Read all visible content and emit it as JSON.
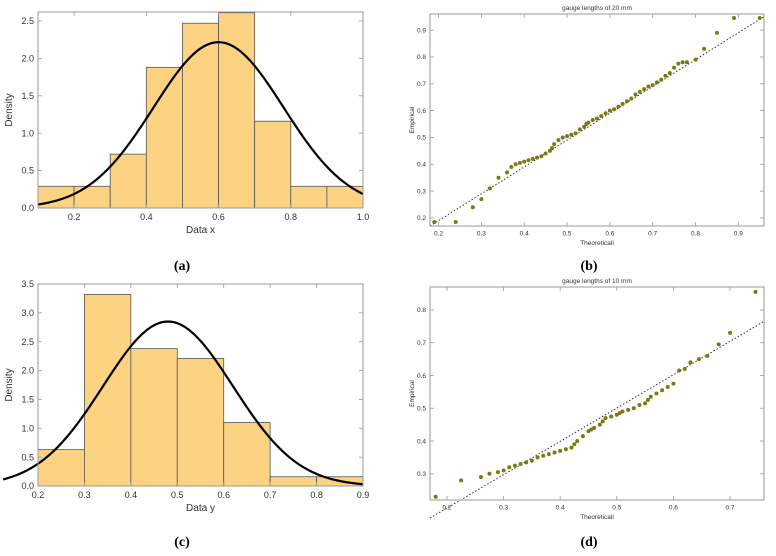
{
  "chart_data": [
    {
      "id": "a",
      "type": "histogram",
      "caption": "(a)",
      "title": "",
      "xlabel": "Data x",
      "ylabel": "Density",
      "xlim": [
        0.1,
        1.0
      ],
      "ylim": [
        0,
        2.62
      ],
      "xticks": [
        "0.2",
        "0.4",
        "0.6",
        "0.8",
        "1.0"
      ],
      "xtick_values": [
        0.2,
        0.4,
        0.6,
        0.8,
        1.0
      ],
      "yticks": [
        "0.0",
        "0.5",
        "1.0",
        "1.5",
        "2.0",
        "2.5"
      ],
      "ytick_values": [
        0,
        0.5,
        1.0,
        1.5,
        2.0,
        2.5
      ],
      "bins": [
        {
          "x0": 0.1,
          "x1": 0.2,
          "value": 0.29
        },
        {
          "x0": 0.2,
          "x1": 0.3,
          "value": 0.29
        },
        {
          "x0": 0.3,
          "x1": 0.4,
          "value": 0.72
        },
        {
          "x0": 0.4,
          "x1": 0.5,
          "value": 1.88
        },
        {
          "x0": 0.5,
          "x1": 0.6,
          "value": 2.47
        },
        {
          "x0": 0.6,
          "x1": 0.7,
          "value": 2.61
        },
        {
          "x0": 0.7,
          "x1": 0.8,
          "value": 1.16
        },
        {
          "x0": 0.8,
          "x1": 0.9,
          "value": 0.29
        },
        {
          "x0": 0.9,
          "x1": 1.0,
          "value": 0.29
        }
      ],
      "curve": {
        "type": "normal",
        "mean": 0.6,
        "sd": 0.18
      }
    },
    {
      "id": "b",
      "type": "scatter",
      "caption": "(b)",
      "title": "gauge lengths of 20 mm",
      "xlabel": "Theoreticall",
      "ylabel": "Empirical",
      "xlim": [
        0.18,
        0.96
      ],
      "ylim": [
        0.17,
        0.96
      ],
      "xticks": [
        "0.2",
        "0.3",
        "0.4",
        "0.5",
        "0.6",
        "0.7",
        "0.8",
        "0.9"
      ],
      "xtick_values": [
        0.2,
        0.3,
        0.4,
        0.5,
        0.6,
        0.7,
        0.8,
        0.9
      ],
      "yticks": [
        "0.2",
        "0.3",
        "0.4",
        "0.5",
        "0.6",
        "0.7",
        "0.8",
        "0.9"
      ],
      "ytick_values": [
        0.2,
        0.3,
        0.4,
        0.5,
        0.6,
        0.7,
        0.8,
        0.9
      ],
      "reference_line": [
        [
          0.18,
          0.17
        ],
        [
          0.96,
          0.95
        ]
      ],
      "points": [
        [
          0.19,
          0.185
        ],
        [
          0.24,
          0.185
        ],
        [
          0.28,
          0.24
        ],
        [
          0.3,
          0.27
        ],
        [
          0.32,
          0.31
        ],
        [
          0.34,
          0.35
        ],
        [
          0.36,
          0.37
        ],
        [
          0.37,
          0.39
        ],
        [
          0.38,
          0.4
        ],
        [
          0.39,
          0.405
        ],
        [
          0.4,
          0.41
        ],
        [
          0.41,
          0.415
        ],
        [
          0.42,
          0.42
        ],
        [
          0.43,
          0.425
        ],
        [
          0.44,
          0.43
        ],
        [
          0.45,
          0.44
        ],
        [
          0.46,
          0.45
        ],
        [
          0.465,
          0.46
        ],
        [
          0.47,
          0.475
        ],
        [
          0.48,
          0.49
        ],
        [
          0.49,
          0.5
        ],
        [
          0.5,
          0.505
        ],
        [
          0.51,
          0.51
        ],
        [
          0.52,
          0.515
        ],
        [
          0.53,
          0.53
        ],
        [
          0.54,
          0.54
        ],
        [
          0.545,
          0.55
        ],
        [
          0.55,
          0.555
        ],
        [
          0.56,
          0.565
        ],
        [
          0.57,
          0.57
        ],
        [
          0.58,
          0.58
        ],
        [
          0.59,
          0.59
        ],
        [
          0.6,
          0.6
        ],
        [
          0.61,
          0.605
        ],
        [
          0.62,
          0.615
        ],
        [
          0.63,
          0.625
        ],
        [
          0.64,
          0.635
        ],
        [
          0.65,
          0.645
        ],
        [
          0.66,
          0.66
        ],
        [
          0.67,
          0.67
        ],
        [
          0.68,
          0.68
        ],
        [
          0.69,
          0.69
        ],
        [
          0.7,
          0.695
        ],
        [
          0.71,
          0.705
        ],
        [
          0.72,
          0.715
        ],
        [
          0.73,
          0.73
        ],
        [
          0.74,
          0.74
        ],
        [
          0.75,
          0.76
        ],
        [
          0.76,
          0.775
        ],
        [
          0.77,
          0.78
        ],
        [
          0.78,
          0.78
        ],
        [
          0.8,
          0.79
        ],
        [
          0.82,
          0.83
        ],
        [
          0.85,
          0.89
        ],
        [
          0.89,
          0.945
        ],
        [
          0.95,
          0.945
        ]
      ]
    },
    {
      "id": "c",
      "type": "histogram",
      "caption": "(c)",
      "title": "",
      "xlabel": "Data y",
      "ylabel": "Density",
      "xlim": [
        0.2,
        0.9
      ],
      "ylim": [
        0,
        3.5
      ],
      "xticks": [
        "0.2",
        "0.3",
        "0.4",
        "0.5",
        "0.6",
        "0.7",
        "0.8",
        "0.9"
      ],
      "xtick_values": [
        0.2,
        0.3,
        0.4,
        0.5,
        0.6,
        0.7,
        0.8,
        0.9
      ],
      "yticks": [
        "0.0",
        "0.5",
        "1.0",
        "1.5",
        "2.0",
        "2.5",
        "3.0",
        "3.5"
      ],
      "ytick_values": [
        0,
        0.5,
        1.0,
        1.5,
        2.0,
        2.5,
        3.0,
        3.5
      ],
      "bins": [
        {
          "x0": 0.2,
          "x1": 0.3,
          "value": 0.63
        },
        {
          "x0": 0.3,
          "x1": 0.4,
          "value": 3.32
        },
        {
          "x0": 0.4,
          "x1": 0.5,
          "value": 2.38
        },
        {
          "x0": 0.5,
          "x1": 0.6,
          "value": 2.21
        },
        {
          "x0": 0.6,
          "x1": 0.7,
          "value": 1.1
        },
        {
          "x0": 0.7,
          "x1": 0.8,
          "value": 0.16
        },
        {
          "x0": 0.8,
          "x1": 0.9,
          "value": 0.16
        }
      ],
      "curve": {
        "type": "normal",
        "mean": 0.48,
        "sd": 0.14
      }
    },
    {
      "id": "d",
      "type": "scatter",
      "caption": "(d)",
      "title": "gauge lengths of 10 mm",
      "xlabel": "Theoreticall",
      "ylabel": "Empirical",
      "xlim": [
        0.17,
        0.76
      ],
      "ylim": [
        0.22,
        0.87
      ],
      "xticks": [
        "0.2",
        "0.3",
        "0.4",
        "0.5",
        "0.6",
        "0.7"
      ],
      "xtick_values": [
        0.2,
        0.3,
        0.4,
        0.5,
        0.6,
        0.7
      ],
      "yticks": [
        "0.3",
        "0.4",
        "0.5",
        "0.6",
        "0.7",
        "0.8"
      ],
      "ytick_values": [
        0.3,
        0.4,
        0.5,
        0.6,
        0.7,
        0.8
      ],
      "reference_line": [
        [
          0.17,
          0.165
        ],
        [
          0.76,
          0.765
        ]
      ],
      "points": [
        [
          0.18,
          0.23
        ],
        [
          0.225,
          0.28
        ],
        [
          0.26,
          0.29
        ],
        [
          0.275,
          0.3
        ],
        [
          0.29,
          0.305
        ],
        [
          0.3,
          0.31
        ],
        [
          0.31,
          0.32
        ],
        [
          0.32,
          0.325
        ],
        [
          0.33,
          0.33
        ],
        [
          0.34,
          0.335
        ],
        [
          0.35,
          0.34
        ],
        [
          0.36,
          0.35
        ],
        [
          0.37,
          0.355
        ],
        [
          0.38,
          0.36
        ],
        [
          0.39,
          0.365
        ],
        [
          0.4,
          0.37
        ],
        [
          0.41,
          0.375
        ],
        [
          0.42,
          0.38
        ],
        [
          0.425,
          0.39
        ],
        [
          0.43,
          0.4
        ],
        [
          0.44,
          0.415
        ],
        [
          0.45,
          0.43
        ],
        [
          0.455,
          0.435
        ],
        [
          0.46,
          0.44
        ],
        [
          0.47,
          0.45
        ],
        [
          0.475,
          0.46
        ],
        [
          0.48,
          0.47
        ],
        [
          0.49,
          0.475
        ],
        [
          0.5,
          0.48
        ],
        [
          0.505,
          0.485
        ],
        [
          0.51,
          0.49
        ],
        [
          0.52,
          0.495
        ],
        [
          0.53,
          0.5
        ],
        [
          0.54,
          0.51
        ],
        [
          0.55,
          0.515
        ],
        [
          0.555,
          0.525
        ],
        [
          0.56,
          0.535
        ],
        [
          0.57,
          0.545
        ],
        [
          0.58,
          0.555
        ],
        [
          0.59,
          0.565
        ],
        [
          0.6,
          0.575
        ],
        [
          0.61,
          0.615
        ],
        [
          0.62,
          0.62
        ],
        [
          0.63,
          0.64
        ],
        [
          0.645,
          0.65
        ],
        [
          0.66,
          0.66
        ],
        [
          0.68,
          0.695
        ],
        [
          0.7,
          0.73
        ],
        [
          0.745,
          0.855
        ]
      ]
    }
  ],
  "style": {
    "bar_fill": "#fcd283",
    "bar_stroke": "#555555",
    "curve_color": "#000000",
    "point_color": "#7a7a10",
    "frame_color": "#9a9a9a",
    "ref_line_color": "#333333"
  }
}
